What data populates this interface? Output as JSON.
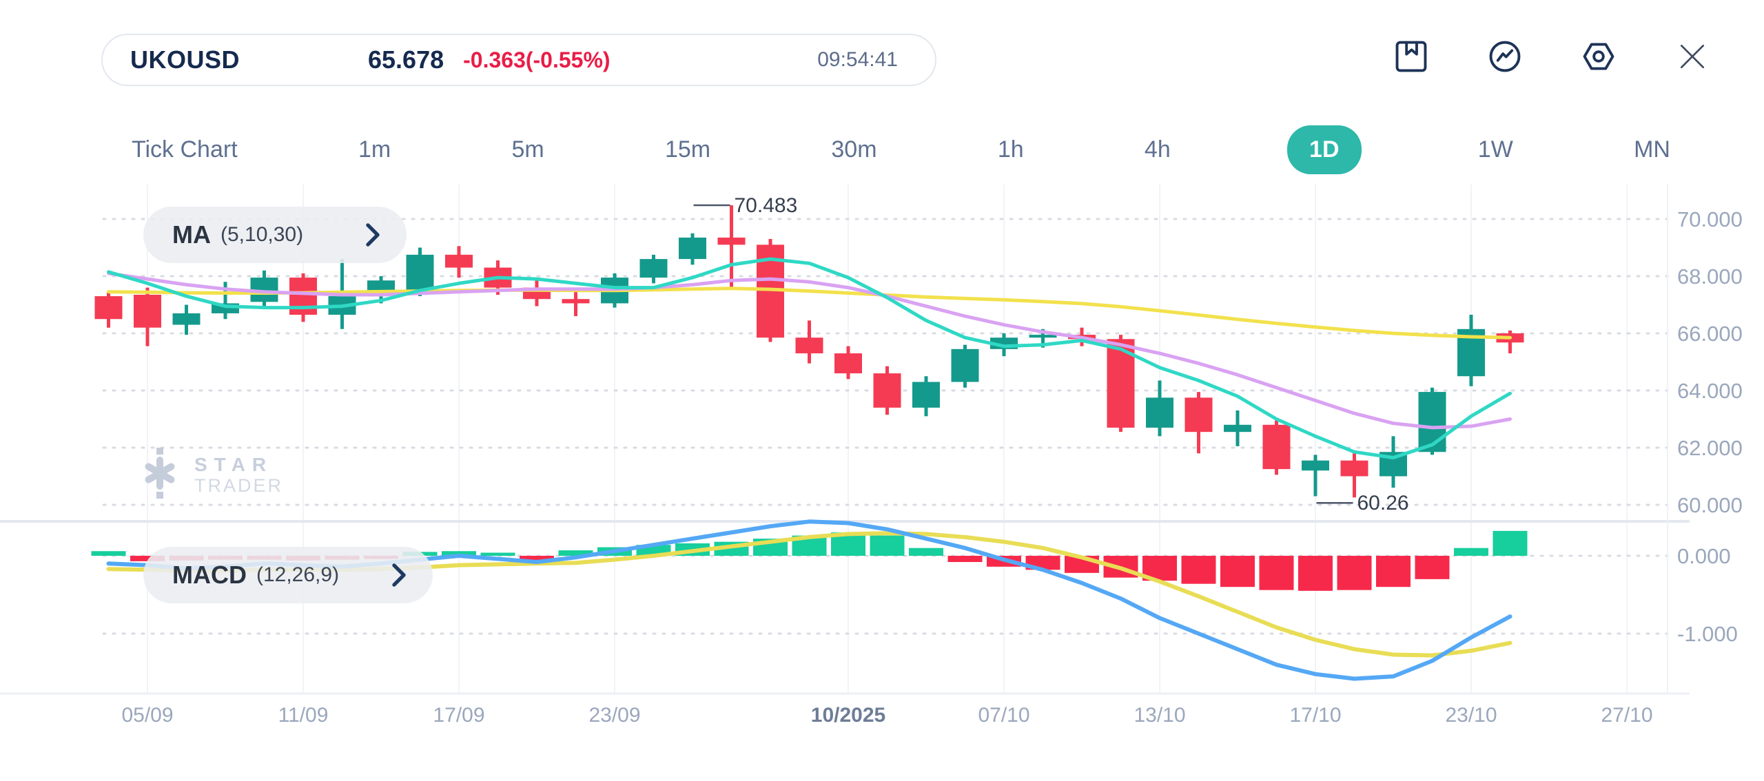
{
  "header": {
    "symbol": "UKOUSD",
    "price": "65.678",
    "change": "-0.363(-0.55%)",
    "time": "09:54:41"
  },
  "toolbar": {
    "icons": [
      "bookmark-icon",
      "trend-circle-icon",
      "settings-hexagon-icon",
      "close-icon"
    ]
  },
  "timeframes": {
    "active": "1D",
    "items": [
      {
        "label": "Tick Chart",
        "active": false
      },
      {
        "label": "1m",
        "active": false
      },
      {
        "label": "5m",
        "active": false
      },
      {
        "label": "15m",
        "active": false
      },
      {
        "label": "30m",
        "active": false
      },
      {
        "label": "1h",
        "active": false
      },
      {
        "label": "4h",
        "active": false
      },
      {
        "label": "1D",
        "active": true
      },
      {
        "label": "1W",
        "active": false
      },
      {
        "label": "MN",
        "active": false
      }
    ]
  },
  "indicators": {
    "ma": {
      "label": "MA",
      "params": "(5,10,30)"
    },
    "macd": {
      "label": "MACD",
      "params": "(12,26,9)"
    }
  },
  "watermark": {
    "line1": "STAR",
    "line2": "TRADER"
  },
  "annotations": {
    "high": {
      "label": "70.483",
      "k": 16
    },
    "low": {
      "label": "60.26",
      "k": 32
    }
  },
  "axes": {
    "price_ticks": [
      {
        "label": "70.000",
        "value": 70
      },
      {
        "label": "68.000",
        "value": 68
      },
      {
        "label": "66.000",
        "value": 66
      },
      {
        "label": "64.000",
        "value": 64
      },
      {
        "label": "62.000",
        "value": 62
      },
      {
        "label": "60.000",
        "value": 60
      }
    ],
    "macd_ticks": [
      {
        "label": "0.000",
        "value": 0
      },
      {
        "label": "-1.000",
        "value": -1
      }
    ],
    "dates": [
      {
        "label": "05/09",
        "k": 1,
        "bold": false
      },
      {
        "label": "11/09",
        "k": 5,
        "bold": false
      },
      {
        "label": "17/09",
        "k": 9,
        "bold": false
      },
      {
        "label": "23/09",
        "k": 13,
        "bold": false
      },
      {
        "label": "10/2025",
        "k": 19,
        "bold": true
      },
      {
        "label": "07/10",
        "k": 23,
        "bold": false
      },
      {
        "label": "13/10",
        "k": 27,
        "bold": false
      },
      {
        "label": "17/10",
        "k": 31,
        "bold": false
      },
      {
        "label": "23/10",
        "k": 35,
        "bold": false
      },
      {
        "label": "27/10",
        "k": 39,
        "bold": false
      }
    ]
  },
  "colors": {
    "navy": "#152a4e",
    "negative": "#e91d47",
    "accent": "#2db8a9",
    "up": "#149a8c",
    "down": "#f43b53",
    "ma5": "#2fd8c5",
    "ma10": "#d9a2f2",
    "ma30": "#f2e14c",
    "hist_up": "#17ce9d",
    "hist_down": "#f7294a",
    "macd_line": "#54a8f5",
    "signal_line": "#e8dd55",
    "axis_text": "#9aa7bc",
    "axis_text_bold": "#6e7d97",
    "grid_dot": "#d8dbe2",
    "grid_vert": "#f1f3f7",
    "annotation": "#353f4f"
  },
  "chart_data": {
    "type": "candlestick+macd",
    "title": "UKOUSD 1D",
    "timeframe": "1D",
    "ylim_price": [
      60,
      70.5
    ],
    "ylim_macd": [
      -1.8,
      0.5
    ],
    "high_label": 70.483,
    "low_label": 60.26,
    "candle_columns": [
      "date",
      "open",
      "high",
      "low",
      "close"
    ],
    "candles": [
      [
        "04/09",
        67.3,
        67.45,
        66.2,
        66.5
      ],
      [
        "05/09",
        67.35,
        67.6,
        65.55,
        66.2
      ],
      [
        "08/09",
        66.3,
        67.0,
        65.95,
        66.7
      ],
      [
        "09/09",
        66.7,
        67.8,
        66.5,
        67.05
      ],
      [
        "10/09",
        67.1,
        68.2,
        66.95,
        67.95
      ],
      [
        "11/09",
        67.95,
        68.1,
        66.4,
        66.65
      ],
      [
        "12/09",
        66.65,
        68.6,
        66.15,
        67.3
      ],
      [
        "15/09",
        67.3,
        68.0,
        67.05,
        67.85
      ],
      [
        "16/09",
        67.5,
        69.0,
        67.3,
        68.75
      ],
      [
        "17/09",
        68.75,
        69.05,
        67.95,
        68.3
      ],
      [
        "18/09",
        68.3,
        68.55,
        67.35,
        67.6
      ],
      [
        "19/09",
        67.6,
        67.9,
        66.95,
        67.2
      ],
      [
        "22/09",
        67.2,
        67.6,
        66.6,
        67.05
      ],
      [
        "23/09",
        67.05,
        68.1,
        66.9,
        67.95
      ],
      [
        "24/09",
        67.95,
        68.75,
        67.75,
        68.6
      ],
      [
        "25/09",
        68.6,
        69.5,
        68.4,
        69.35
      ],
      [
        "26/09",
        69.35,
        70.483,
        67.6,
        69.1
      ],
      [
        "29/09",
        69.1,
        69.3,
        65.7,
        65.85
      ],
      [
        "30/09",
        65.85,
        66.45,
        64.95,
        65.3
      ],
      [
        "01/10",
        65.3,
        65.55,
        64.4,
        64.6
      ],
      [
        "02/10",
        64.6,
        64.85,
        63.15,
        63.4
      ],
      [
        "03/10",
        63.4,
        64.5,
        63.1,
        64.3
      ],
      [
        "06/10",
        64.3,
        65.6,
        64.1,
        65.45
      ],
      [
        "07/10",
        65.45,
        66.0,
        65.2,
        65.85
      ],
      [
        "08/10",
        65.85,
        66.15,
        65.5,
        65.95
      ],
      [
        "09/10",
        65.95,
        66.2,
        65.55,
        65.8
      ],
      [
        "10/10",
        65.8,
        65.95,
        62.55,
        62.7
      ],
      [
        "13/10",
        62.7,
        64.35,
        62.4,
        63.75
      ],
      [
        "14/10",
        63.75,
        63.95,
        61.8,
        62.55
      ],
      [
        "15/10",
        62.55,
        63.3,
        62.05,
        62.8
      ],
      [
        "16/10",
        62.8,
        62.95,
        61.05,
        61.25
      ],
      [
        "17/10",
        61.2,
        61.75,
        60.3,
        61.55
      ],
      [
        "20/10",
        61.55,
        61.8,
        60.26,
        61.0
      ],
      [
        "21/10",
        61.0,
        62.4,
        60.6,
        61.85
      ],
      [
        "22/10",
        61.85,
        64.1,
        61.75,
        63.95
      ],
      [
        "23/10",
        64.5,
        66.65,
        64.15,
        66.15
      ],
      [
        "24/10",
        66.0,
        66.1,
        65.3,
        65.68
      ]
    ],
    "ma5": [
      68.15,
      67.75,
      67.3,
      66.95,
      66.9,
      66.9,
      66.95,
      67.15,
      67.5,
      67.75,
      67.95,
      67.9,
      67.75,
      67.6,
      67.6,
      67.95,
      68.4,
      68.6,
      68.45,
      67.95,
      67.25,
      66.45,
      65.85,
      65.55,
      65.6,
      65.75,
      65.45,
      64.8,
      64.35,
      63.8,
      63.0,
      62.4,
      61.85,
      61.65,
      62.1,
      63.1,
      63.9
    ],
    "ma10": [
      68.1,
      67.9,
      67.7,
      67.55,
      67.45,
      67.4,
      67.35,
      67.35,
      67.4,
      67.45,
      67.5,
      67.55,
      67.55,
      67.55,
      67.6,
      67.7,
      67.85,
      67.9,
      67.8,
      67.6,
      67.3,
      66.95,
      66.6,
      66.3,
      66.05,
      65.85,
      65.6,
      65.3,
      64.95,
      64.55,
      64.1,
      63.65,
      63.2,
      62.85,
      62.7,
      62.75,
      63.0
    ],
    "ma30": [
      67.45,
      67.44,
      67.42,
      67.41,
      67.41,
      67.42,
      67.44,
      67.46,
      67.48,
      67.5,
      67.51,
      67.51,
      67.5,
      67.5,
      67.52,
      67.55,
      67.57,
      67.54,
      67.48,
      67.41,
      67.34,
      67.27,
      67.22,
      67.17,
      67.11,
      67.04,
      66.93,
      66.79,
      66.64,
      66.49,
      66.35,
      66.22,
      66.1,
      66.0,
      65.93,
      65.88,
      65.85
    ],
    "macd_hist": [
      0.06,
      -0.07,
      -0.06,
      -0.05,
      -0.05,
      -0.06,
      -0.05,
      -0.04,
      0.05,
      0.06,
      0.04,
      -0.06,
      0.07,
      0.11,
      0.14,
      0.16,
      0.18,
      0.22,
      0.26,
      0.3,
      0.26,
      0.1,
      -0.08,
      -0.14,
      -0.18,
      -0.22,
      -0.28,
      -0.32,
      -0.36,
      -0.4,
      -0.44,
      -0.45,
      -0.44,
      -0.4,
      -0.3,
      0.1,
      0.32
    ],
    "macd_line": [
      -0.1,
      -0.12,
      -0.16,
      -0.14,
      -0.1,
      -0.12,
      -0.14,
      -0.1,
      -0.05,
      0.0,
      -0.04,
      -0.08,
      -0.02,
      0.06,
      0.14,
      0.22,
      0.3,
      0.38,
      0.44,
      0.42,
      0.34,
      0.22,
      0.1,
      -0.05,
      -0.18,
      -0.35,
      -0.55,
      -0.8,
      -1.0,
      -1.2,
      -1.4,
      -1.52,
      -1.58,
      -1.55,
      -1.35,
      -1.05,
      -0.78
    ],
    "signal_line": [
      -0.17,
      -0.18,
      -0.19,
      -0.19,
      -0.18,
      -0.18,
      -0.18,
      -0.17,
      -0.15,
      -0.12,
      -0.11,
      -0.1,
      -0.09,
      -0.05,
      0.0,
      0.06,
      0.12,
      0.18,
      0.24,
      0.28,
      0.29,
      0.28,
      0.24,
      0.18,
      0.1,
      -0.02,
      -0.16,
      -0.33,
      -0.52,
      -0.72,
      -0.92,
      -1.08,
      -1.2,
      -1.27,
      -1.28,
      -1.22,
      -1.12
    ]
  }
}
